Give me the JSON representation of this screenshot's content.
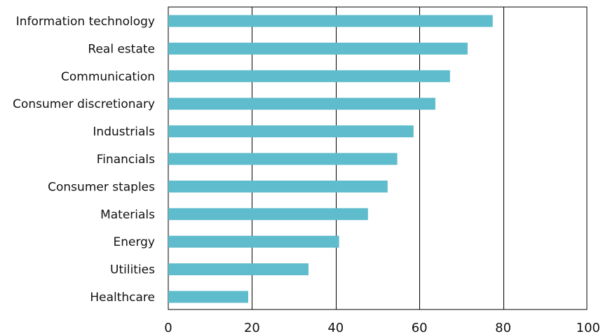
{
  "chart_data": {
    "type": "bar",
    "orientation": "horizontal",
    "categories": [
      "Information technology",
      "Real estate",
      "Communication",
      "Consumer discretionary",
      "Industrials",
      "Financials",
      "Consumer staples",
      "Materials",
      "Energy",
      "Utilities",
      "Healthcare"
    ],
    "values": [
      77.5,
      71.5,
      67.3,
      63.8,
      58.6,
      54.7,
      52.4,
      47.7,
      40.8,
      33.5,
      19.1
    ],
    "title": "",
    "xlabel": "",
    "ylabel": "",
    "xlim": [
      0,
      100
    ],
    "xticks": [
      0,
      20,
      40,
      60,
      80,
      100
    ],
    "grid": "vertical",
    "legend": "none",
    "colors": {
      "bar": "#5fbccc",
      "grid": "#000000",
      "text": "#111111"
    }
  }
}
